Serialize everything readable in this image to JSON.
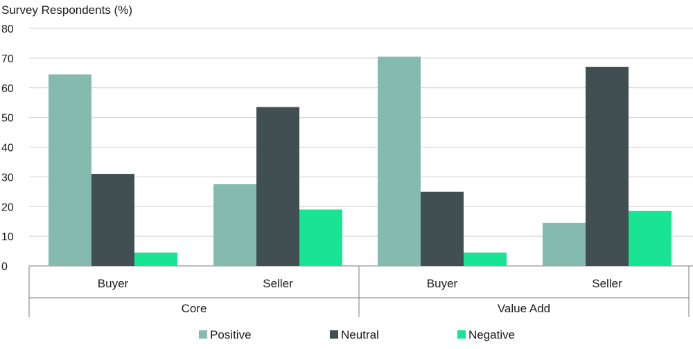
{
  "chart_data": {
    "type": "bar",
    "ylabel": "Survey Respondents (%)",
    "ylim": [
      0,
      80
    ],
    "yticks": [
      0,
      10,
      20,
      30,
      40,
      50,
      60,
      70,
      80
    ],
    "grid": true,
    "legend_position": "bottom",
    "groups": [
      {
        "label": "Core",
        "categories": [
          "Buyer",
          "Seller"
        ]
      },
      {
        "label": "Value Add",
        "categories": [
          "Buyer",
          "Seller"
        ]
      }
    ],
    "categories": [
      "Buyer",
      "Seller",
      "Buyer",
      "Seller"
    ],
    "series": [
      {
        "name": "Positive",
        "color": "#85bbaf",
        "values": [
          64.5,
          27.5,
          70.5,
          14.5
        ]
      },
      {
        "name": "Neutral",
        "color": "#424f52",
        "values": [
          31,
          53.5,
          25,
          67
        ]
      },
      {
        "name": "Negative",
        "color": "#19e494",
        "values": [
          4.5,
          19,
          4.5,
          18.5
        ]
      }
    ]
  }
}
